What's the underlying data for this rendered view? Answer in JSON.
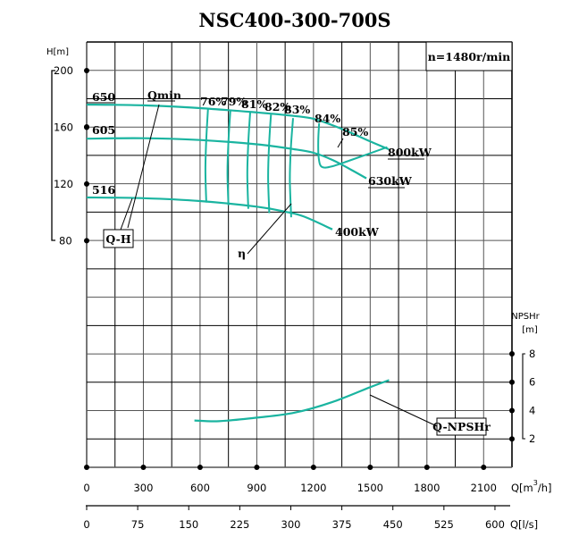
{
  "chart_data": {
    "type": "line",
    "title": "NSC400-300-700S",
    "speed_label": "n=1480r/min",
    "colors": {
      "curve": "#1ab4a0",
      "grid": "#000000"
    },
    "x_axis": {
      "label": "Q[m³/h]",
      "label_main": "Q[m",
      "label_sup": "3",
      "label_tail": "/h]",
      "range": [
        0,
        2250
      ],
      "ticks": [
        "0",
        "300",
        "600",
        "900",
        "1200",
        "1500",
        "1800",
        "2100"
      ],
      "tick_values": [
        0,
        300,
        600,
        900,
        1200,
        1500,
        1800,
        2100
      ]
    },
    "x_axis_ls": {
      "label": "Q[l/s]",
      "ticks": [
        "0",
        "75",
        "150",
        "225",
        "300",
        "375",
        "450",
        "525",
        "600"
      ],
      "tick_values": [
        0,
        75,
        150,
        225,
        300,
        375,
        450,
        525,
        600
      ]
    },
    "y_axis_head": {
      "label": "H[m]",
      "ticks": [
        "200",
        "160",
        "120",
        "80"
      ],
      "tick_values": [
        200,
        160,
        120,
        80
      ]
    },
    "y_axis_npsh": {
      "label_line1": "NPSHr",
      "label_line2": "[m]",
      "ticks": [
        "8",
        "6",
        "4",
        "2"
      ],
      "tick_values": [
        8,
        6,
        4,
        2
      ]
    },
    "head_curves": [
      {
        "name": "650",
        "label": "650",
        "power_label": "800kW",
        "points": [
          [
            0,
            176
          ],
          [
            300,
            175.5
          ],
          [
            600,
            173.5
          ],
          [
            900,
            170.5
          ],
          [
            1100,
            168
          ],
          [
            1200,
            166
          ],
          [
            1300,
            161.5
          ],
          [
            1400,
            156
          ],
          [
            1500,
            150
          ],
          [
            1598,
            144.5
          ]
        ]
      },
      {
        "name": "605",
        "label": "605",
        "power_label": "630kW",
        "points": [
          [
            0,
            152
          ],
          [
            300,
            152.3
          ],
          [
            600,
            151
          ],
          [
            900,
            148
          ],
          [
            1100,
            144.5
          ],
          [
            1200,
            142
          ],
          [
            1300,
            137
          ],
          [
            1400,
            130
          ],
          [
            1480,
            124
          ]
        ]
      },
      {
        "name": "516",
        "label": "516",
        "power_label": "400kW",
        "points": [
          [
            0,
            110.5
          ],
          [
            300,
            110
          ],
          [
            600,
            108
          ],
          [
            900,
            104
          ],
          [
            1050,
            100.5
          ],
          [
            1150,
            97
          ],
          [
            1300,
            88
          ]
        ]
      }
    ],
    "efficiency_lines": [
      {
        "label": "76%",
        "points": [
          [
            642,
            173
          ],
          [
            633,
            152
          ],
          [
            628,
            130
          ],
          [
            633,
            107
          ]
        ]
      },
      {
        "label": "79%",
        "points": [
          [
            760,
            171.5
          ],
          [
            750,
            150
          ],
          [
            745,
            128
          ],
          [
            750,
            105
          ]
        ]
      },
      {
        "label": "81%",
        "points": [
          [
            865,
            170.5
          ],
          [
            855,
            149
          ],
          [
            850,
            127
          ],
          [
            855,
            102.5
          ]
        ]
      },
      {
        "label": "82%",
        "points": [
          [
            975,
            169
          ],
          [
            965,
            148
          ],
          [
            960,
            125
          ],
          [
            966,
            99.5
          ]
        ]
      },
      {
        "label": "83%",
        "points": [
          [
            1092,
            166.5
          ],
          [
            1080,
            145
          ],
          [
            1075,
            123
          ],
          [
            1082,
            96.5
          ]
        ]
      },
      {
        "label": "84%",
        "points": [
          [
            1230,
            163
          ],
          [
            1225,
            150
          ],
          [
            1228,
            138
          ],
          [
            1245,
            132
          ],
          [
            1300,
            132.5
          ],
          [
            1400,
            137
          ],
          [
            1590,
            146
          ]
        ]
      }
    ],
    "annotations": {
      "qmin": "Qmin",
      "qh": "Q-H",
      "eta": "η",
      "eff85": "85%",
      "npsh": "Q-NPSHr"
    },
    "npsh_curve": {
      "name": "Q-NPSHr",
      "points": [
        [
          570,
          3.3
        ],
        [
          700,
          3.25
        ],
        [
          900,
          3.5
        ],
        [
          1100,
          3.85
        ],
        [
          1300,
          4.6
        ],
        [
          1500,
          5.65
        ],
        [
          1600,
          6.15
        ]
      ]
    }
  }
}
